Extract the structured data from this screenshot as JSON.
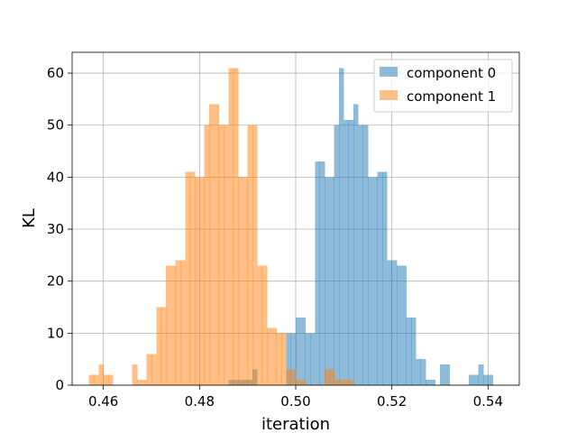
{
  "chart_data": {
    "type": "histogram",
    "xlabel": "iteration",
    "ylabel": "KL",
    "xlim": [
      0.4535,
      0.5465
    ],
    "ylim": [
      0,
      64
    ],
    "xticks": [
      0.46,
      0.48,
      0.5,
      0.52,
      0.54
    ],
    "xtick_labels": [
      "0.46",
      "0.48",
      "0.50",
      "0.52",
      "0.54"
    ],
    "yticks": [
      0,
      10,
      20,
      30,
      40,
      50,
      60
    ],
    "ytick_labels": [
      "0",
      "10",
      "20",
      "30",
      "40",
      "50",
      "60"
    ],
    "grid": true,
    "legend_position": "upper right",
    "bin_width": 0.001,
    "series": [
      {
        "name": "component 0",
        "color": "#1f77b4",
        "alpha": 0.5,
        "bin_starts": [
          0.486,
          0.487,
          0.488,
          0.489,
          0.49,
          0.491,
          0.492,
          0.493,
          0.494,
          0.495,
          0.496,
          0.497,
          0.498,
          0.499,
          0.5,
          0.501,
          0.502,
          0.503,
          0.504,
          0.505,
          0.506,
          0.507,
          0.508,
          0.509,
          0.51,
          0.511,
          0.512,
          0.513,
          0.514,
          0.515,
          0.516,
          0.517,
          0.518,
          0.519,
          0.52,
          0.521,
          0.522,
          0.523,
          0.524,
          0.525,
          0.526,
          0.527,
          0.528,
          0.529,
          0.53,
          0.531,
          0.532,
          0.533,
          0.534,
          0.535,
          0.536,
          0.537,
          0.538,
          0.539,
          0.54,
          0.541
        ],
        "counts": [
          1,
          1,
          1,
          1,
          1,
          3,
          0,
          0,
          0,
          0,
          0,
          0,
          10,
          10,
          13,
          13,
          10,
          10,
          43,
          43,
          40,
          40,
          50,
          61,
          51,
          51,
          54,
          50,
          50,
          40,
          40,
          41,
          41,
          24,
          24,
          23,
          23,
          13,
          13,
          5,
          5,
          1,
          1,
          0,
          4,
          4,
          0,
          0,
          0,
          0,
          2,
          2,
          4,
          2,
          2,
          0
        ]
      },
      {
        "name": "component 1",
        "color": "#ff7f0e",
        "alpha": 0.5,
        "bin_starts": [
          0.457,
          0.458,
          0.459,
          0.46,
          0.461,
          0.462,
          0.463,
          0.464,
          0.465,
          0.466,
          0.467,
          0.468,
          0.469,
          0.47,
          0.471,
          0.472,
          0.473,
          0.474,
          0.475,
          0.476,
          0.477,
          0.478,
          0.479,
          0.48,
          0.481,
          0.482,
          0.483,
          0.484,
          0.485,
          0.486,
          0.487,
          0.488,
          0.489,
          0.49,
          0.491,
          0.492,
          0.493,
          0.494,
          0.495,
          0.496,
          0.497,
          0.498,
          0.499,
          0.5,
          0.501,
          0.502,
          0.503,
          0.504,
          0.505,
          0.506,
          0.507,
          0.508,
          0.509,
          0.51,
          0.511,
          0.512
        ],
        "counts": [
          2,
          2,
          4,
          2,
          2,
          0,
          0,
          0,
          0,
          4,
          1,
          1,
          6,
          6,
          15,
          15,
          23,
          23,
          24,
          24,
          41,
          41,
          40,
          40,
          50,
          54,
          54,
          50,
          50,
          61,
          61,
          40,
          40,
          50,
          50,
          23,
          23,
          11,
          11,
          10,
          10,
          3,
          3,
          1,
          1,
          0,
          0,
          0,
          0,
          3,
          3,
          1,
          1,
          1,
          1,
          0
        ]
      }
    ]
  }
}
